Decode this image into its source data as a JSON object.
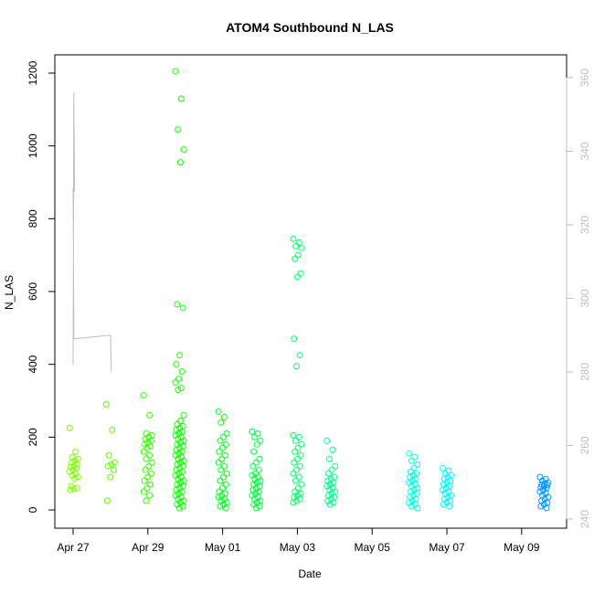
{
  "chart_data": {
    "type": "scatter",
    "title": "ATOM4 Southbound N_LAS",
    "xlabel": "Date",
    "ylabel": "N_LAS",
    "ylim": [
      0,
      1200
    ],
    "y2lim": [
      240,
      360
    ],
    "y_ticks": [
      0,
      200,
      400,
      600,
      800,
      1000,
      1200
    ],
    "y2_ticks": [
      240,
      260,
      280,
      300,
      320,
      340,
      360
    ],
    "x_tick_labels": [
      "Apr 27",
      "Apr 29",
      "May 01",
      "May 03",
      "May 05",
      "May 07",
      "May 09"
    ],
    "x_tick_days": [
      0,
      2,
      4,
      6,
      8,
      10,
      12
    ],
    "xlim_days": [
      -0.6,
      13.0
    ],
    "colors": {
      "axis": "#000000",
      "axis_right": "#bebebe",
      "line": "#bebebe"
    },
    "series": [
      {
        "name": "scatter_N_LAS",
        "color_by": "day",
        "points": [
          {
            "d": 0.02,
            "v": [
              225,
              160,
              145,
              140,
              135,
              130,
              125,
              120,
              118,
              115,
              110,
              105,
              100,
              95,
              90,
              85,
              65,
              60,
              58,
              55
            ]
          },
          {
            "d": 1.0,
            "v": [
              290,
              220,
              150,
              130,
              125,
              120,
              110,
              90,
              25
            ]
          },
          {
            "d": 2.0,
            "v": [
              315,
              260,
              210,
              205,
              200,
              195,
              190,
              185,
              180,
              175,
              170,
              160,
              150,
              140,
              130,
              120,
              110,
              100,
              90,
              80,
              70,
              60,
              50,
              40,
              25
            ]
          },
          {
            "d": 2.85,
            "v": [
              1205,
              1130,
              1045,
              990,
              955,
              565,
              555,
              425,
              400,
              380,
              360,
              350,
              335,
              330,
              260,
              245,
              235,
              230,
              225,
              220,
              215,
              210,
              205,
              200,
              195,
              190,
              185,
              180,
              175,
              170,
              165,
              160,
              155,
              150,
              145,
              140,
              135,
              130,
              125,
              120,
              115,
              110,
              105,
              100,
              95,
              90,
              85,
              80,
              75,
              70,
              65,
              60,
              55,
              50,
              45,
              40,
              35,
              30,
              25,
              20,
              15,
              10,
              5
            ]
          },
          {
            "d": 4.0,
            "v": [
              270,
              255,
              240,
              210,
              200,
              190,
              180,
              170,
              160,
              150,
              140,
              130,
              120,
              110,
              100,
              90,
              80,
              70,
              60,
              50,
              45,
              40,
              35,
              30,
              25,
              20,
              15,
              10,
              5
            ]
          },
          {
            "d": 4.9,
            "v": [
              215,
              210,
              200,
              190,
              180,
              160,
              140,
              130,
              120,
              110,
              100,
              95,
              90,
              85,
              80,
              75,
              70,
              65,
              60,
              55,
              50,
              45,
              40,
              35,
              30,
              25,
              20,
              15,
              10,
              5
            ]
          },
          {
            "d": 6.0,
            "v": [
              745,
              735,
              725,
              720,
              700,
              690,
              650,
              640,
              470,
              425,
              395,
              205,
              200,
              190,
              180,
              170,
              160,
              150,
              140,
              130,
              120,
              110,
              100,
              90,
              80,
              70,
              60,
              50,
              45,
              40,
              35,
              30,
              25,
              20
            ]
          },
          {
            "d": 6.9,
            "v": [
              190,
              165,
              140,
              120,
              110,
              100,
              90,
              85,
              80,
              75,
              70,
              65,
              60,
              55,
              50,
              45,
              40,
              35,
              30,
              25,
              20,
              15
            ]
          },
          {
            "d": 9.1,
            "v": [
              155,
              145,
              135,
              125,
              115,
              105,
              100,
              95,
              90,
              85,
              80,
              75,
              70,
              65,
              60,
              55,
              50,
              45,
              40,
              35,
              30,
              25,
              20,
              15,
              10,
              5
            ]
          },
          {
            "d": 10.0,
            "v": [
              115,
              108,
              100,
              95,
              90,
              85,
              80,
              75,
              70,
              65,
              60,
              55,
              50,
              45,
              40,
              35,
              30,
              25,
              20,
              15,
              10
            ]
          },
          {
            "d": 12.6,
            "v": [
              90,
              85,
              80,
              75,
              72,
              70,
              68,
              65,
              62,
              60,
              55,
              50,
              45,
              40,
              35,
              30,
              25,
              20,
              15,
              10,
              5
            ]
          }
        ]
      },
      {
        "name": "line_right_axis",
        "axis": "right",
        "points": [
          [
            0.0,
            282
          ],
          [
            0.02,
            356
          ],
          [
            0.04,
            329
          ],
          [
            0.0,
            330
          ],
          [
            0.02,
            289
          ],
          [
            1.0,
            290
          ],
          [
            1.02,
            280
          ],
          [
            1.0,
            290
          ]
        ]
      }
    ]
  }
}
